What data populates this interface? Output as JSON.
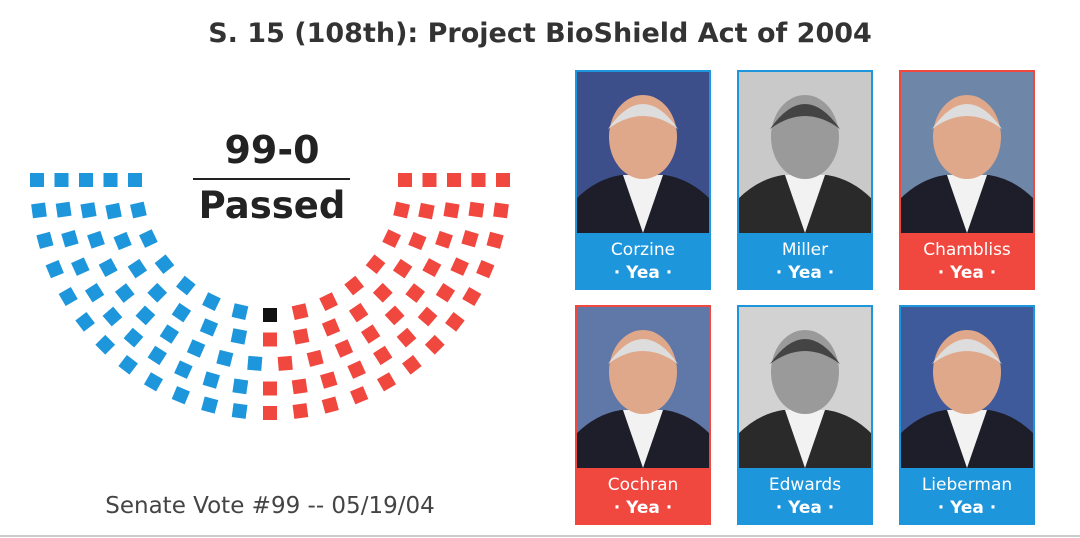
{
  "title": "S. 15 (108th): Project BioShield Act of 2004",
  "result": {
    "score": "99-0",
    "status": "Passed"
  },
  "seats": {
    "groups": [
      {
        "color": "#1e96dc",
        "count": 48
      },
      {
        "color": "#111111",
        "count": 1
      },
      {
        "color": "#f0473f",
        "count": 51
      }
    ]
  },
  "footer": "Senate Vote #99 -- 05/19/04",
  "senators": [
    {
      "name": "Corzine",
      "vote": "· Yea ·",
      "color": "#1e96dc"
    },
    {
      "name": "Miller",
      "vote": "· Yea ·",
      "color": "#1e96dc"
    },
    {
      "name": "Chambliss",
      "vote": "· Yea ·",
      "color": "#f0473f"
    },
    {
      "name": "Cochran",
      "vote": "· Yea ·",
      "color": "#f0473f"
    },
    {
      "name": "Edwards",
      "vote": "· Yea ·",
      "color": "#1e96dc"
    },
    {
      "name": "Lieberman",
      "vote": "· Yea ·",
      "color": "#1e96dc"
    }
  ]
}
